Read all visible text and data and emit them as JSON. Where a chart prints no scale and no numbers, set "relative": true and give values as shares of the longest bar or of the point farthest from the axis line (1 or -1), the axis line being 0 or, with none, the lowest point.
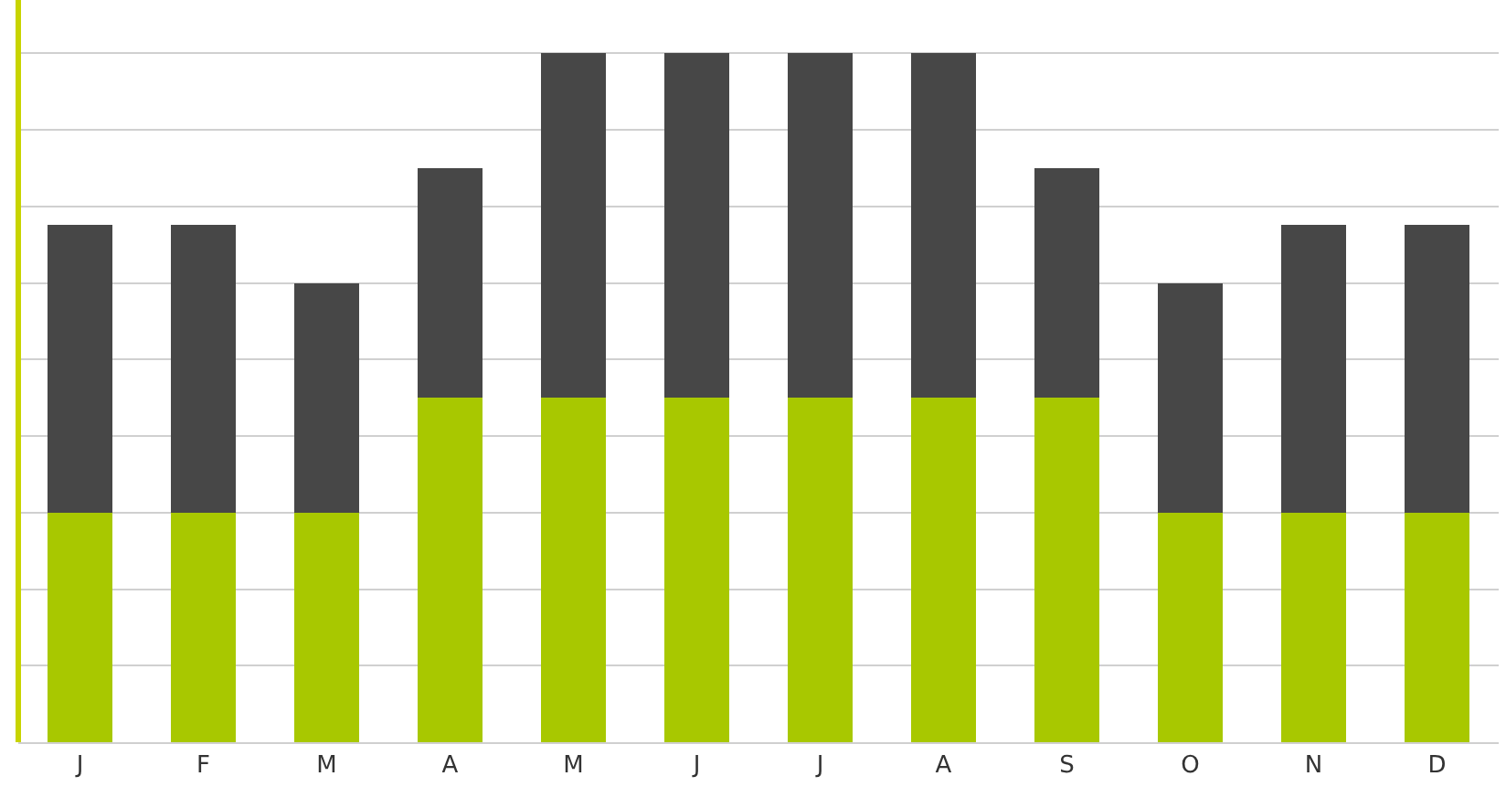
{
  "chart_data": {
    "type": "bar",
    "relative": true,
    "stacked": true,
    "grid": "y",
    "categories": [
      "J",
      "F",
      "M",
      "A",
      "M",
      "J",
      "J",
      "A",
      "S",
      "O",
      "N",
      "D"
    ],
    "series": [
      {
        "color": "#a8c800",
        "values": [
          0.333,
          0.333,
          0.333,
          0.5,
          0.5,
          0.5,
          0.5,
          0.5,
          0.5,
          0.333,
          0.333,
          0.333
        ]
      },
      {
        "color": "#474747",
        "values": [
          0.417,
          0.417,
          0.333,
          0.333,
          0.5,
          0.5,
          0.5,
          0.5,
          0.333,
          0.333,
          0.417,
          0.417
        ]
      }
    ]
  }
}
